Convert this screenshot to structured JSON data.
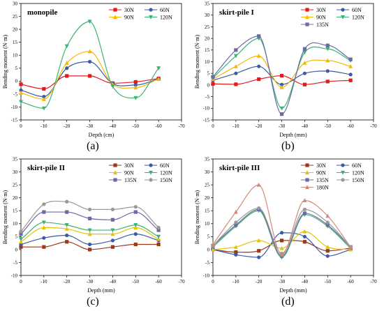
{
  "figure": {
    "panel_letters": [
      "(a)",
      "(b)",
      "(c)",
      "(d)"
    ]
  },
  "chart_data": [
    {
      "type": "line",
      "title": "monopile",
      "xlabel": "Depth (cm)",
      "ylabel": "Bending moment (N·m)",
      "xlim": [
        0,
        -70
      ],
      "ylim": [
        -15,
        30
      ],
      "xticks": [
        0,
        -10,
        -20,
        -30,
        -40,
        -50,
        -60,
        -70
      ],
      "yticks": [
        -15,
        -10,
        -5,
        0,
        5,
        10,
        15,
        20,
        25,
        30
      ],
      "grid": false,
      "legend_position": "top-right",
      "legend_columns": 2,
      "series": [
        {
          "name": "30N",
          "color": "#e41a1c",
          "marker": "square",
          "x": [
            0,
            -10,
            -20,
            -30,
            -40,
            -50,
            -60
          ],
          "y": [
            -1.2,
            -3.0,
            2.0,
            2.0,
            -0.8,
            -0.3,
            1.0
          ]
        },
        {
          "name": "60N",
          "color": "#3b5ba5",
          "marker": "circle",
          "x": [
            0,
            -10,
            -20,
            -30,
            -40,
            -50,
            -60
          ],
          "y": [
            -3.5,
            -6.0,
            5.0,
            7.5,
            -1.0,
            -1.5,
            0.8
          ]
        },
        {
          "name": "90N",
          "color": "#f5b800",
          "marker": "triangle-up",
          "x": [
            0,
            -10,
            -20,
            -30,
            -40,
            -50,
            -60
          ],
          "y": [
            -4.5,
            -7.0,
            7.0,
            11.5,
            -1.2,
            -2.5,
            0.8
          ]
        },
        {
          "name": "120N",
          "color": "#3cb371",
          "marker": "triangle-down",
          "x": [
            0,
            -10,
            -20,
            -30,
            -40,
            -50,
            -60
          ],
          "y": [
            -8.0,
            -10.5,
            13.5,
            23.0,
            -2.0,
            -6.5,
            5.0
          ]
        }
      ]
    },
    {
      "type": "line",
      "title": "skirt-pile I",
      "xlabel": "Depth (mm)",
      "ylabel": "Bending moment (N·m)",
      "xlim": [
        0,
        -70
      ],
      "ylim": [
        -15,
        35
      ],
      "xticks": [
        0,
        -10,
        -20,
        -30,
        -40,
        -50,
        -60,
        -70
      ],
      "yticks": [
        -15,
        -10,
        -5,
        0,
        5,
        10,
        15,
        20,
        25,
        30,
        35
      ],
      "grid": false,
      "legend_position": "top-right",
      "legend_columns": 2,
      "series": [
        {
          "name": "30N",
          "color": "#e41a1c",
          "marker": "square",
          "x": [
            0,
            -10,
            -20,
            -30,
            -40,
            -50,
            -60
          ],
          "y": [
            0.5,
            0.3,
            2.5,
            4.0,
            0.2,
            1.5,
            2.0
          ]
        },
        {
          "name": "60N",
          "color": "#3b5ba5",
          "marker": "circle",
          "x": [
            0,
            -10,
            -20,
            -30,
            -40,
            -50,
            -60
          ],
          "y": [
            2.0,
            5.0,
            8.0,
            0.2,
            5.0,
            6.0,
            4.5
          ]
        },
        {
          "name": "90N",
          "color": "#f5b800",
          "marker": "triangle-up",
          "x": [
            0,
            -10,
            -20,
            -30,
            -40,
            -50,
            -60
          ],
          "y": [
            2.5,
            8.0,
            12.5,
            -1.0,
            9.5,
            10.5,
            8.0
          ]
        },
        {
          "name": "120N",
          "color": "#3cb371",
          "marker": "triangle-down",
          "x": [
            0,
            -10,
            -20,
            -30,
            -40,
            -50,
            -60
          ],
          "y": [
            3.0,
            12.5,
            20.0,
            -10.0,
            14.0,
            15.5,
            10.5
          ]
        },
        {
          "name": "135N",
          "color": "#6a6aa8",
          "marker": "square",
          "x": [
            0,
            -10,
            -20,
            -30,
            -40,
            -50,
            -60
          ],
          "y": [
            3.5,
            15.0,
            21.0,
            -12.5,
            15.5,
            17.0,
            11.0
          ]
        }
      ]
    },
    {
      "type": "line",
      "title": "skirt-pile II",
      "xlabel": "Depth (mm)",
      "ylabel": "Bending moment (N·m)",
      "xlim": [
        0,
        -70
      ],
      "ylim": [
        -10,
        35
      ],
      "xticks": [
        0,
        -10,
        -20,
        -30,
        -40,
        -50,
        -60,
        -70
      ],
      "yticks": [
        -10,
        -5,
        0,
        5,
        10,
        15,
        20,
        25,
        30,
        35
      ],
      "grid": false,
      "legend_position": "top-right",
      "legend_columns": 2,
      "series": [
        {
          "name": "30N",
          "color": "#9b3a1a",
          "marker": "square",
          "x": [
            0,
            -10,
            -20,
            -30,
            -40,
            -50,
            -60
          ],
          "y": [
            1.0,
            1.0,
            3.0,
            0.0,
            1.0,
            2.0,
            2.0
          ]
        },
        {
          "name": "60N",
          "color": "#3b5ba5",
          "marker": "circle",
          "x": [
            0,
            -10,
            -20,
            -30,
            -40,
            -50,
            -60
          ],
          "y": [
            2.0,
            4.5,
            5.5,
            2.0,
            3.5,
            6.0,
            3.5
          ]
        },
        {
          "name": "90N",
          "color": "#e6c200",
          "marker": "triangle-up",
          "x": [
            0,
            -10,
            -20,
            -30,
            -40,
            -50,
            -60
          ],
          "y": [
            3.0,
            8.5,
            8.0,
            6.0,
            6.0,
            8.5,
            4.0
          ]
        },
        {
          "name": "120N",
          "color": "#3cb371",
          "marker": "triangle-down",
          "x": [
            0,
            -10,
            -20,
            -30,
            -40,
            -50,
            -60
          ],
          "y": [
            4.0,
            10.5,
            9.5,
            7.5,
            7.5,
            9.5,
            5.0
          ]
        },
        {
          "name": "135N",
          "color": "#6a6aa8",
          "marker": "square",
          "x": [
            0,
            -10,
            -20,
            -30,
            -40,
            -50,
            -60
          ],
          "y": [
            6.0,
            14.5,
            14.5,
            12.0,
            11.5,
            14.5,
            7.5
          ]
        },
        {
          "name": "150N",
          "color": "#999999",
          "marker": "circle",
          "x": [
            0,
            -10,
            -20,
            -30,
            -40,
            -50,
            -60
          ],
          "y": [
            7.0,
            17.5,
            18.5,
            15.5,
            15.5,
            16.5,
            8.5
          ]
        }
      ]
    },
    {
      "type": "line",
      "title": "skirt-pile III",
      "xlabel": "Depth (mm)",
      "ylabel": "Bending moment (N·m)",
      "xlim": [
        0,
        -70
      ],
      "ylim": [
        -10,
        35
      ],
      "xticks": [
        0,
        -10,
        -20,
        -30,
        -40,
        -50,
        -60,
        -70
      ],
      "yticks": [
        -10,
        -5,
        0,
        5,
        10,
        15,
        20,
        25,
        30,
        35
      ],
      "grid": false,
      "legend_position": "top-right",
      "legend_columns": 2,
      "series": [
        {
          "name": "30N",
          "color": "#9b3a1a",
          "marker": "square",
          "x": [
            0,
            -10,
            -20,
            -30,
            -40,
            -50,
            -60
          ],
          "y": [
            0.0,
            -1.0,
            -0.5,
            3.5,
            3.0,
            -0.5,
            0.5
          ]
        },
        {
          "name": "60N",
          "color": "#3b5ba5",
          "marker": "circle",
          "x": [
            0,
            -10,
            -20,
            -30,
            -40,
            -50,
            -60
          ],
          "y": [
            0.0,
            -2.0,
            -3.0,
            6.5,
            5.0,
            -2.5,
            0.0
          ]
        },
        {
          "name": "90N",
          "color": "#e6c200",
          "marker": "triangle-up",
          "x": [
            0,
            -10,
            -20,
            -30,
            -40,
            -50,
            -60
          ],
          "y": [
            0.0,
            1.0,
            3.5,
            0.5,
            7.0,
            1.0,
            0.0
          ]
        },
        {
          "name": "120N",
          "color": "#3cb371",
          "marker": "triangle-down",
          "x": [
            0,
            -10,
            -20,
            -30,
            -40,
            -50,
            -60
          ],
          "y": [
            1.0,
            9.0,
            15.0,
            -3.0,
            13.5,
            9.0,
            0.5
          ]
        },
        {
          "name": "135N",
          "color": "#6a6aa8",
          "marker": "square",
          "x": [
            0,
            -10,
            -20,
            -30,
            -40,
            -50,
            -60
          ],
          "y": [
            1.5,
            9.5,
            15.5,
            -2.5,
            14.0,
            9.5,
            1.0
          ]
        },
        {
          "name": "150N",
          "color": "#999999",
          "marker": "circle",
          "x": [
            0,
            -10,
            -20,
            -30,
            -40,
            -50,
            -60
          ],
          "y": [
            1.5,
            10.5,
            16.0,
            -1.5,
            15.5,
            10.5,
            1.0
          ]
        },
        {
          "name": "180N",
          "color": "#d4887a",
          "marker": "triangle-up",
          "x": [
            0,
            -10,
            -20,
            -30,
            -40,
            -50,
            -60
          ],
          "y": [
            2.0,
            14.5,
            25.0,
            -2.0,
            19.0,
            13.0,
            1.0
          ]
        }
      ]
    }
  ]
}
